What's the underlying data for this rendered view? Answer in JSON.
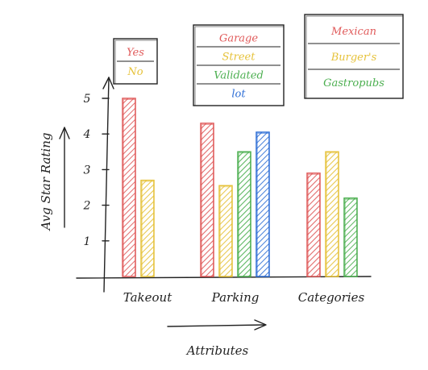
{
  "chart_data": {
    "type": "bar",
    "title": "",
    "xlabel": "Attributes",
    "ylabel": "Avg Star Rating",
    "ylim": [
      0,
      5
    ],
    "yticks": [
      "1",
      "2",
      "3",
      "4",
      "5"
    ],
    "groups": [
      {
        "name": "Takeout",
        "bars": [
          {
            "label": "Yes",
            "value": 5.0,
            "color": "#e05a5a"
          },
          {
            "label": "No",
            "value": 2.7,
            "color": "#e6c23a"
          }
        ]
      },
      {
        "name": "Parking",
        "bars": [
          {
            "label": "Garage",
            "value": 4.3,
            "color": "#e05a5a"
          },
          {
            "label": "Street",
            "value": 2.55,
            "color": "#e6c23a"
          },
          {
            "label": "Validated",
            "value": 3.5,
            "color": "#4caf50"
          },
          {
            "label": "lot",
            "value": 4.05,
            "color": "#2f6fd6"
          }
        ]
      },
      {
        "name": "Categories",
        "bars": [
          {
            "label": "Mexican",
            "value": 2.9,
            "color": "#e05a5a"
          },
          {
            "label": "Burgers",
            "value": 3.5,
            "color": "#e6c23a"
          },
          {
            "label": "Gastropubs",
            "value": 2.2,
            "color": "#4caf50"
          }
        ]
      }
    ],
    "legends": [
      {
        "entries": [
          "Yes",
          "No"
        ],
        "colors": [
          "#e05a5a",
          "#e6c23a"
        ]
      },
      {
        "entries": [
          "Garage",
          "Street",
          "Validated",
          "lot"
        ],
        "colors": [
          "#e05a5a",
          "#e6c23a",
          "#4caf50",
          "#2f6fd6"
        ]
      },
      {
        "entries": [
          "Mexican",
          "Burger's",
          "Gastropubs"
        ],
        "colors": [
          "#e05a5a",
          "#e6c23a",
          "#4caf50"
        ]
      }
    ]
  }
}
